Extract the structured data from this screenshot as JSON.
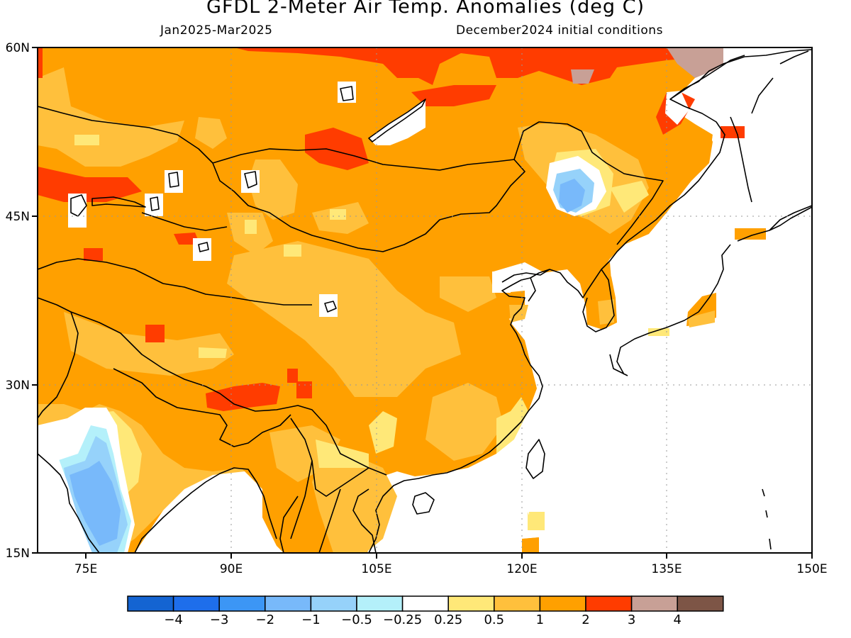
{
  "title": "GFDL 2-Meter Air Temp. Anomalies (deg C)",
  "subtitle_left": "Jan2025-Mar2025",
  "subtitle_right": "December2024 initial conditions",
  "map": {
    "lon_range": [
      70,
      150
    ],
    "lat_range": [
      15,
      60
    ],
    "lon_ticks": [
      "75E",
      "90E",
      "105E",
      "120E",
      "135E",
      "150E"
    ],
    "lat_ticks": [
      "60N",
      "45N",
      "30N",
      "15N"
    ],
    "gridlines": "dotted"
  },
  "legend": {
    "colors": [
      "#1464d2",
      "#1e6eeb",
      "#3c96f5",
      "#78b9fa",
      "#96d2fa",
      "#b4f0fa",
      "#ffffff",
      "#ffe878",
      "#ffc03c",
      "#ffa000",
      "#ff3c00",
      "#c8a096",
      "#7d5546"
    ],
    "labels": [
      "-4",
      "-3",
      "-2",
      "-1",
      "-0.5",
      "-0.25",
      "0.25",
      "0.5",
      "1",
      "2",
      "3",
      "4"
    ]
  },
  "colors": {
    "ocean": "#ffffff",
    "coast": "#000000",
    "anomaly_1_2": "#ffa000",
    "anomaly_0_5_1": "#ffc03c",
    "anomaly_0_25_0_5": "#ffe878",
    "anomaly_2_3": "#ff3c00",
    "anomaly_3_4": "#c8a096"
  }
}
